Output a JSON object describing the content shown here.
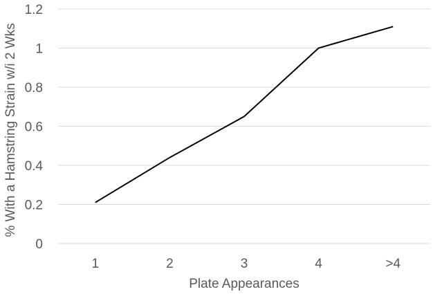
{
  "chart_data": {
    "type": "line",
    "categories": [
      "1",
      "2",
      "3",
      "4",
      ">4"
    ],
    "series": [
      {
        "values": [
          0.21,
          0.44,
          0.65,
          1.0,
          1.11
        ]
      }
    ],
    "xlabel": "Plate Appearances",
    "ylabel": "% With a Hamstring Strain w/i 2 Wks",
    "ylim": [
      0,
      1.2
    ],
    "yticks": [
      "0",
      "0.2",
      "0.4",
      "0.6",
      "0.8",
      "1",
      "1.2"
    ],
    "grid": "horizontal",
    "legend": "none",
    "colors": {
      "line": "#000000",
      "grid": "#d9d9d9",
      "text": "#595959"
    }
  }
}
